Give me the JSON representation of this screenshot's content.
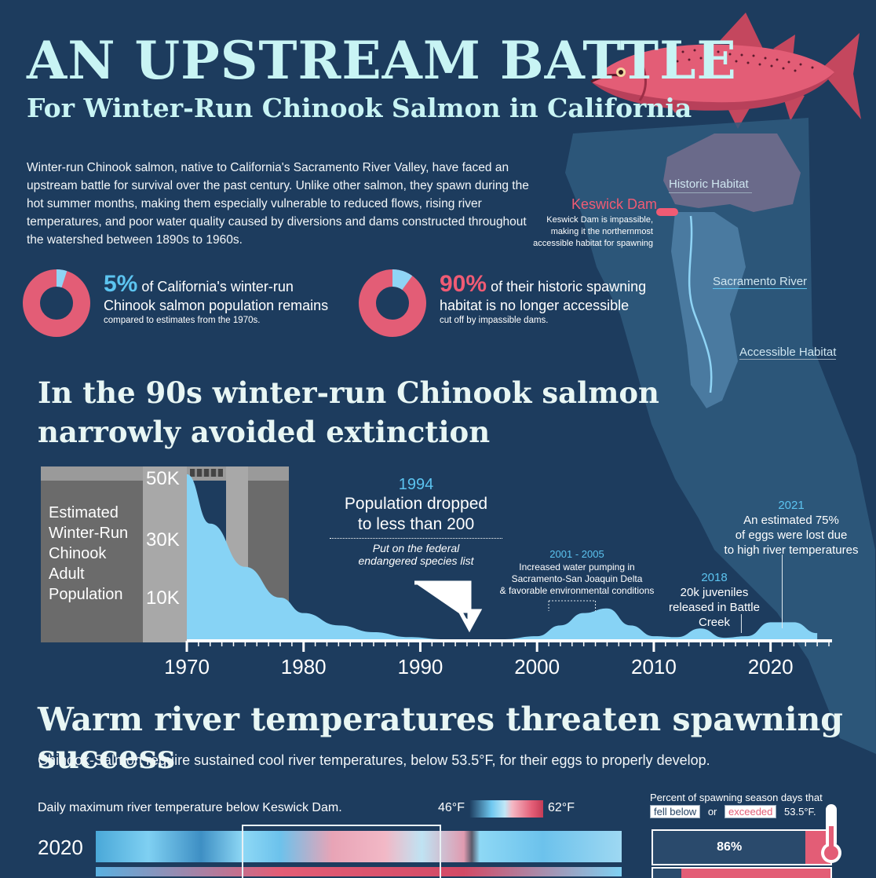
{
  "header": {
    "title": "AN UPSTREAM BATTLE",
    "subtitle": "For Winter-Run Chinook Salmon in California"
  },
  "intro": "Winter-run Chinook salmon, native to California's Sacramento River Valley, have faced an upstream battle for survival over the past century. Unlike other salmon, they spawn during the hot summer months, making them especially vulnerable to reduced flows, rising river temperatures, and poor water quality caused by diversions and dams constructed throughout the watershed between 1890s to 1960s.",
  "stats": [
    {
      "value": "5%",
      "fraction": 0.05,
      "line1": "of California's winter-run",
      "line2": "Chinook salmon population remains",
      "note": "compared to estimates from the 1970s.",
      "color": "#5cc4f0"
    },
    {
      "value": "90%",
      "fraction": 0.1,
      "line1": "of their historic spawning",
      "line2": "habitat is no longer accessible",
      "note": "cut off by impassible dams.",
      "color": "#f05b74"
    }
  ],
  "map": {
    "historic_label": "Historic Habitat",
    "dam_label": "Keswick Dam",
    "dam_note_1": "Keswick Dam is impassible,",
    "dam_note_2": "making it the northernmost",
    "dam_note_3": "accessible habitat for spawning",
    "river_label": "Sacramento River",
    "accessible_label": "Accessible Habitat"
  },
  "section1": {
    "heading_1": "In the 90s winter-run Chinook salmon",
    "heading_2": "narrowly avoided extinction"
  },
  "chart_data": {
    "type": "area",
    "ylabel_lines": [
      "Estimated",
      "Winter-Run",
      "Chinook",
      "Adult",
      "Population"
    ],
    "y_ticks": [
      "50K",
      "30K",
      "10K"
    ],
    "x_ticks": [
      "1970",
      "1980",
      "1990",
      "2000",
      "2010",
      "2020"
    ],
    "x": [
      1970,
      1972,
      1975,
      1978,
      1980,
      1983,
      1986,
      1989,
      1992,
      1994,
      1997,
      2000,
      2002,
      2004,
      2006,
      2008,
      2010,
      2012,
      2014,
      2016,
      2018,
      2020,
      2022,
      2024
    ],
    "values": [
      54000,
      38000,
      24000,
      14000,
      9000,
      5000,
      2800,
      1200,
      500,
      200,
      500,
      1500,
      5000,
      9000,
      10500,
      5000,
      1500,
      1200,
      4000,
      1000,
      1500,
      6000,
      6000,
      2500
    ],
    "xlim": [
      1970,
      2025
    ],
    "ylim": [
      0,
      55000
    ],
    "color": "#87d3f5",
    "annotations": {
      "a1994_year": "1994",
      "a1994_title_1": "Population dropped",
      "a1994_title_2": "to less than 200",
      "a1994_note_1": "Put on the federal",
      "a1994_note_2": "endangered species list",
      "a2001_year": "2001 - 2005",
      "a2001_note_1": "Increased water pumping in",
      "a2001_note_2": "Sacramento-San Joaquin Delta",
      "a2001_note_3": "& favorable environmental conditions",
      "a2018_year": "2018",
      "a2018_note_1": "20k juveniles",
      "a2018_note_2": "released in Battle Creek",
      "a2021_year": "2021",
      "a2021_note_1": "An estimated 75%",
      "a2021_note_2": "of eggs were lost due",
      "a2021_note_3": "to high river temperatures"
    }
  },
  "section2": {
    "heading": "Warm river temperatures threaten spawning success",
    "subheading": "Chinook-Salmon require sustained cool river temperatures, below 53.5°F, for their eggs to properly develop.",
    "heatmap_title": "Daily maximum river temperature below Keswick Dam.",
    "legend_low": "46°F",
    "legend_high": "62°F",
    "row_label": "2020",
    "percent_title": "Percent of spawning season days that",
    "below_label": "fell below",
    "or_label": "or",
    "exceeded_label": "exceeded",
    "threshold_label": "53.5°F.",
    "pct_2020": "86%",
    "pct_2020_value": 0.86
  }
}
